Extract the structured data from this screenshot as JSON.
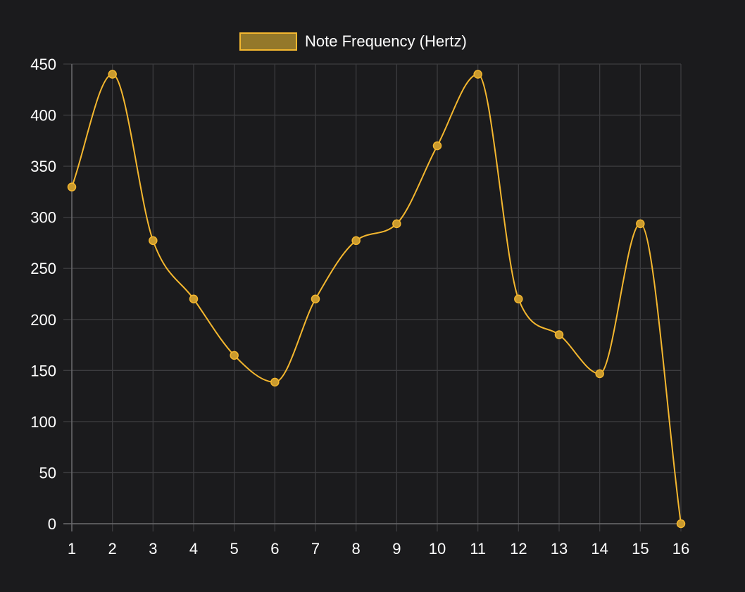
{
  "page": {
    "background": "#1b1b1d"
  },
  "chart_data": {
    "type": "line",
    "x": [
      "1",
      "2",
      "3",
      "4",
      "5",
      "6",
      "7",
      "8",
      "9",
      "10",
      "11",
      "12",
      "13",
      "14",
      "15",
      "16"
    ],
    "series": [
      {
        "name": "Note Frequency (Hertz)",
        "values": [
          329.63,
          440,
          277.18,
          220,
          164.81,
          138.59,
          220,
          277.18,
          293.66,
          369.99,
          440,
          220,
          185,
          146.83,
          293.66,
          0
        ],
        "line_color": "#f4b72f",
        "fill_color": "#94782a",
        "point_fill": "#c99a2e",
        "smooth": true
      }
    ],
    "ylim": [
      0,
      450
    ],
    "yticks": [
      "0",
      "50",
      "100",
      "150",
      "200",
      "250",
      "300",
      "350",
      "400",
      "450"
    ],
    "grid": true,
    "legend_position": "top-center",
    "grid_color": "#3c3c3f",
    "axis_color": "#6a6a6d",
    "tick_label_color": "#ffffff",
    "legend_text_color": "#ffffff"
  }
}
